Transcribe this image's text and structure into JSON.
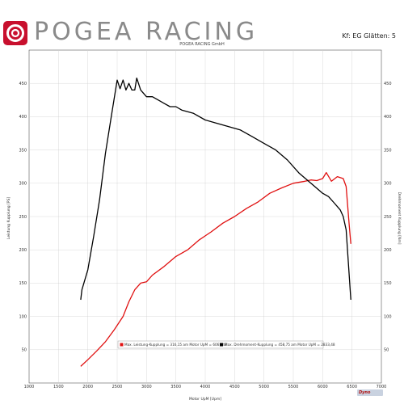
{
  "header": {
    "brand": "POGEA RACING",
    "smoothing": "Kf: EG Glätten: 5",
    "subtitle": "POGEA RACING GmbH"
  },
  "colors": {
    "power": "#e01010",
    "torque": "#000000",
    "grid": "#cfcfcf",
    "brand_red": "#c8102e"
  },
  "footer": {
    "dyno_logo_text": "Dyno"
  },
  "chart_data": {
    "type": "line",
    "xlabel": "Motor UpM [Upm]",
    "ylabel_left": "Leistung Kupplung [PS]",
    "ylabel_right": "Drehmoment Kupplung [Nm]",
    "xlim": [
      1000,
      7000
    ],
    "ylim": [
      0,
      500
    ],
    "x_ticks": [
      "1000",
      "1500",
      "2000",
      "2500",
      "3000",
      "3500",
      "4000",
      "4500",
      "5000",
      "5500",
      "6000",
      "6500",
      "7000"
    ],
    "y_ticks": [
      "50",
      "100",
      "150",
      "200",
      "250",
      "300",
      "350",
      "400",
      "450"
    ],
    "legend": [
      {
        "label": "Max. Leistung-Kupplung = 316,15 am Motor UpM = 6061,48",
        "color": "#e01010"
      },
      {
        "label": "Max. Drehmoment-Kupplung = 458,75 am Motor UpM = 2833,48",
        "color": "#000000"
      }
    ],
    "series": [
      {
        "name": "Leistung Kupplung",
        "color": "#e01010",
        "x": [
          1880,
          2000,
          2150,
          2300,
          2450,
          2600,
          2700,
          2800,
          2900,
          3000,
          3100,
          3300,
          3500,
          3700,
          3900,
          4100,
          4300,
          4500,
          4700,
          4900,
          5100,
          5300,
          5500,
          5700,
          5800,
          5900,
          6000,
          6061,
          6150,
          6250,
          6350,
          6400,
          6450,
          6480
        ],
        "y": [
          25,
          35,
          48,
          62,
          80,
          100,
          122,
          140,
          150,
          152,
          162,
          175,
          190,
          200,
          215,
          227,
          240,
          250,
          262,
          272,
          285,
          293,
          300,
          303,
          305,
          304,
          307,
          316,
          303,
          310,
          307,
          295,
          240,
          209
        ]
      },
      {
        "name": "Drehmoment Kupplung",
        "color": "#000000",
        "x": [
          1880,
          1900,
          2000,
          2100,
          2200,
          2300,
          2400,
          2500,
          2550,
          2600,
          2650,
          2700,
          2750,
          2800,
          2833,
          2900,
          3000,
          3100,
          3200,
          3300,
          3400,
          3500,
          3600,
          3800,
          4000,
          4200,
          4400,
          4600,
          4800,
          5000,
          5200,
          5400,
          5600,
          5800,
          6000,
          6100,
          6200,
          6300,
          6350,
          6400,
          6450,
          6480
        ],
        "y": [
          125,
          140,
          170,
          220,
          275,
          345,
          400,
          455,
          442,
          455,
          440,
          450,
          440,
          440,
          458,
          440,
          430,
          430,
          425,
          420,
          415,
          415,
          410,
          405,
          395,
          390,
          385,
          380,
          370,
          360,
          350,
          335,
          315,
          300,
          285,
          280,
          270,
          260,
          250,
          230,
          165,
          125
        ]
      }
    ]
  }
}
